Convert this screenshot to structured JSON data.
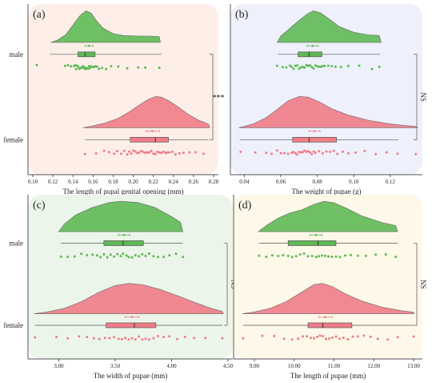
{
  "colors": {
    "male": "#5fb955",
    "female": "#f07c88",
    "axis": "#555555",
    "bracket": "#666666"
  },
  "chart_data": [
    {
      "type": "raincloud",
      "panel_label": "(a)",
      "xlabel": "The length of pupal genital opening (mm)",
      "ylabel": "",
      "xlim": [
        0.1,
        0.28
      ],
      "xticks": [
        0.1,
        0.12,
        0.14,
        0.16,
        0.18,
        0.2,
        0.22,
        0.24,
        0.26,
        0.28
      ],
      "xtick_labels": [
        "0.10",
        "0.12",
        "0.14",
        "0.16",
        "0.18",
        "0.20",
        "0.22",
        "0.24",
        "0.26",
        "0.28"
      ],
      "show_y_labels": true,
      "background": "#fdefe8",
      "significance": "***",
      "groups": [
        {
          "name": "male",
          "density": [
            [
              0.118,
              0
            ],
            [
              0.125,
              0.08
            ],
            [
              0.133,
              0.25
            ],
            [
              0.14,
              0.55
            ],
            [
              0.147,
              0.85
            ],
            [
              0.153,
              1.0
            ],
            [
              0.158,
              0.93
            ],
            [
              0.163,
              0.7
            ],
            [
              0.17,
              0.45
            ],
            [
              0.18,
              0.28
            ],
            [
              0.19,
              0.22
            ],
            [
              0.205,
              0.2
            ],
            [
              0.218,
              0.2
            ],
            [
              0.226,
              0.18
            ],
            [
              0.227,
              0
            ]
          ],
          "box": {
            "q1": 0.145,
            "median": 0.152,
            "q3": 0.162,
            "whisker_low": 0.117,
            "whisker_high": 0.228
          },
          "mean": 0.156,
          "ci": [
            0.152,
            0.16
          ],
          "points": [
            0.104,
            0.132,
            0.135,
            0.138,
            0.141,
            0.142,
            0.143,
            0.144,
            0.145,
            0.146,
            0.147,
            0.148,
            0.149,
            0.15,
            0.15,
            0.151,
            0.152,
            0.153,
            0.154,
            0.155,
            0.156,
            0.157,
            0.158,
            0.16,
            0.161,
            0.162,
            0.164,
            0.166,
            0.169,
            0.173,
            0.178,
            0.185,
            0.194,
            0.205,
            0.212,
            0.226
          ]
        },
        {
          "name": "female",
          "density": [
            [
              0.15,
              0
            ],
            [
              0.16,
              0.06
            ],
            [
              0.172,
              0.15
            ],
            [
              0.185,
              0.3
            ],
            [
              0.197,
              0.52
            ],
            [
              0.207,
              0.74
            ],
            [
              0.215,
              0.9
            ],
            [
              0.222,
              0.99
            ],
            [
              0.228,
              0.97
            ],
            [
              0.236,
              0.84
            ],
            [
              0.245,
              0.65
            ],
            [
              0.255,
              0.42
            ],
            [
              0.265,
              0.24
            ],
            [
              0.275,
              0.12
            ],
            [
              0.276,
              0
            ]
          ],
          "box": {
            "q1": 0.197,
            "median": 0.222,
            "q3": 0.235,
            "whisker_low": 0.152,
            "whisker_high": 0.275
          },
          "mean": 0.219,
          "ci": [
            0.213,
            0.226
          ],
          "points": [
            0.152,
            0.163,
            0.171,
            0.176,
            0.181,
            0.184,
            0.188,
            0.191,
            0.194,
            0.196,
            0.198,
            0.2,
            0.202,
            0.204,
            0.206,
            0.208,
            0.21,
            0.212,
            0.214,
            0.216,
            0.218,
            0.22,
            0.222,
            0.224,
            0.226,
            0.228,
            0.23,
            0.232,
            0.234,
            0.236,
            0.239,
            0.242,
            0.246,
            0.25,
            0.256,
            0.262,
            0.27
          ]
        }
      ]
    },
    {
      "type": "raincloud",
      "panel_label": "(b)",
      "xlabel": "The weight of pupae (g)",
      "ylabel": "",
      "xlim": [
        0.035,
        0.135
      ],
      "xticks": [
        0.04,
        0.06,
        0.08,
        0.1,
        0.12
      ],
      "xtick_labels": [
        "0.04",
        "0.06",
        "0.08",
        "0.10",
        "0.12"
      ],
      "show_y_labels": false,
      "background": "#eef1fb",
      "significance": "NS",
      "groups": [
        {
          "name": "male",
          "density": [
            [
              0.058,
              0
            ],
            [
              0.06,
              0.2
            ],
            [
              0.065,
              0.45
            ],
            [
              0.07,
              0.7
            ],
            [
              0.075,
              0.92
            ],
            [
              0.078,
              1.0
            ],
            [
              0.082,
              0.93
            ],
            [
              0.087,
              0.72
            ],
            [
              0.092,
              0.5
            ],
            [
              0.1,
              0.32
            ],
            [
              0.108,
              0.24
            ],
            [
              0.114,
              0.22
            ],
            [
              0.115,
              0
            ]
          ],
          "box": {
            "q1": 0.0695,
            "median": 0.0755,
            "q3": 0.0825,
            "whisker_low": 0.0585,
            "whisker_high": 0.1145
          },
          "mean": 0.0775,
          "ci": [
            0.0745,
            0.0805
          ],
          "points": [
            0.058,
            0.061,
            0.063,
            0.065,
            0.066,
            0.067,
            0.068,
            0.069,
            0.07,
            0.071,
            0.072,
            0.073,
            0.074,
            0.075,
            0.075,
            0.076,
            0.077,
            0.078,
            0.079,
            0.08,
            0.081,
            0.082,
            0.083,
            0.084,
            0.086,
            0.088,
            0.09,
            0.093,
            0.097,
            0.103,
            0.11,
            0.114
          ]
        },
        {
          "name": "female",
          "density": [
            [
              0.037,
              0
            ],
            [
              0.045,
              0.12
            ],
            [
              0.052,
              0.32
            ],
            [
              0.058,
              0.58
            ],
            [
              0.064,
              0.85
            ],
            [
              0.07,
              0.99
            ],
            [
              0.075,
              0.97
            ],
            [
              0.081,
              0.82
            ],
            [
              0.088,
              0.6
            ],
            [
              0.097,
              0.4
            ],
            [
              0.108,
              0.24
            ],
            [
              0.12,
              0.12
            ],
            [
              0.134,
              0.04
            ],
            [
              0.135,
              0
            ]
          ],
          "box": {
            "q1": 0.0665,
            "median": 0.0755,
            "q3": 0.0905,
            "whisker_low": 0.0375,
            "whisker_high": 0.1245
          },
          "mean": 0.0785,
          "ci": [
            0.0755,
            0.0815
          ],
          "points": [
            0.038,
            0.046,
            0.052,
            0.055,
            0.058,
            0.06,
            0.062,
            0.064,
            0.066,
            0.067,
            0.068,
            0.069,
            0.07,
            0.071,
            0.072,
            0.073,
            0.074,
            0.075,
            0.076,
            0.077,
            0.078,
            0.079,
            0.081,
            0.083,
            0.085,
            0.087,
            0.089,
            0.091,
            0.094,
            0.097,
            0.101,
            0.106,
            0.112,
            0.118,
            0.124,
            0.134
          ]
        }
      ]
    },
    {
      "type": "raincloud",
      "panel_label": "(c)",
      "xlabel": "The width of pupae (mm)",
      "ylabel": "",
      "xlim": [
        2.77,
        4.5
      ],
      "xticks": [
        3.0,
        3.5,
        4.0,
        4.5
      ],
      "xtick_labels": [
        "3.00",
        "3.50",
        "4.00",
        "4.50"
      ],
      "show_y_labels": true,
      "background": "#ecf5ea",
      "significance": "NS",
      "groups": [
        {
          "name": "male",
          "density": [
            [
              3.0,
              0
            ],
            [
              3.05,
              0.25
            ],
            [
              3.15,
              0.55
            ],
            [
              3.3,
              0.8
            ],
            [
              3.45,
              0.96
            ],
            [
              3.55,
              1.0
            ],
            [
              3.7,
              0.96
            ],
            [
              3.85,
              0.8
            ],
            [
              4.0,
              0.5
            ],
            [
              4.08,
              0.3
            ],
            [
              4.1,
              0
            ]
          ],
          "box": {
            "q1": 3.4,
            "median": 3.57,
            "q3": 3.75,
            "whisker_low": 3.02,
            "whisker_high": 4.1
          },
          "mean": 3.58,
          "ci": [
            3.53,
            3.63
          ],
          "points": [
            3.02,
            3.08,
            3.14,
            3.2,
            3.25,
            3.3,
            3.34,
            3.37,
            3.4,
            3.43,
            3.46,
            3.49,
            3.52,
            3.55,
            3.57,
            3.6,
            3.62,
            3.65,
            3.68,
            3.71,
            3.74,
            3.77,
            3.8,
            3.84,
            3.88,
            3.93,
            3.98,
            4.04,
            4.1
          ]
        },
        {
          "name": "female",
          "density": [
            [
              2.78,
              0
            ],
            [
              2.9,
              0.06
            ],
            [
              3.05,
              0.18
            ],
            [
              3.2,
              0.4
            ],
            [
              3.35,
              0.7
            ],
            [
              3.5,
              0.93
            ],
            [
              3.62,
              1.0
            ],
            [
              3.75,
              0.95
            ],
            [
              3.9,
              0.8
            ],
            [
              4.05,
              0.6
            ],
            [
              4.2,
              0.38
            ],
            [
              4.35,
              0.18
            ],
            [
              4.45,
              0.08
            ],
            [
              4.46,
              0
            ]
          ],
          "box": {
            "q1": 3.42,
            "median": 3.67,
            "q3": 3.86,
            "whisker_low": 2.79,
            "whisker_high": 4.45
          },
          "mean": 3.65,
          "ci": [
            3.59,
            3.71
          ],
          "points": [
            2.79,
            2.98,
            3.08,
            3.18,
            3.25,
            3.31,
            3.36,
            3.41,
            3.45,
            3.49,
            3.53,
            3.56,
            3.59,
            3.62,
            3.65,
            3.68,
            3.71,
            3.74,
            3.77,
            3.8,
            3.84,
            3.88,
            3.93,
            3.98,
            4.05,
            4.12,
            4.2,
            4.3,
            4.45
          ]
        }
      ]
    },
    {
      "type": "raincloud",
      "panel_label": "(d)",
      "xlabel": "The length of pupae (mm)",
      "ylabel": "",
      "xlim": [
        8.6,
        13.1
      ],
      "xticks": [
        9.0,
        10.0,
        11.0,
        12.0,
        13.0
      ],
      "xtick_labels": [
        "9.00",
        "10.00",
        "11.00",
        "12.00",
        "13.00"
      ],
      "show_y_labels": false,
      "background": "#fdf8e8",
      "significance": "NS",
      "groups": [
        {
          "name": "male",
          "density": [
            [
              9.1,
              0
            ],
            [
              9.3,
              0.2
            ],
            [
              9.6,
              0.45
            ],
            [
              9.9,
              0.62
            ],
            [
              10.2,
              0.72
            ],
            [
              10.5,
              0.9
            ],
            [
              10.75,
              1.0
            ],
            [
              11.0,
              0.95
            ],
            [
              11.3,
              0.78
            ],
            [
              11.7,
              0.52
            ],
            [
              12.2,
              0.3
            ],
            [
              12.55,
              0.2
            ],
            [
              12.6,
              0
            ]
          ],
          "box": {
            "q1": 9.85,
            "median": 10.6,
            "q3": 11.05,
            "whisker_low": 9.12,
            "whisker_high": 12.6
          },
          "mean": 10.55,
          "ci": [
            10.4,
            10.7
          ],
          "points": [
            9.12,
            9.3,
            9.45,
            9.6,
            9.72,
            9.85,
            9.95,
            10.05,
            10.15,
            10.25,
            10.35,
            10.45,
            10.55,
            10.62,
            10.7,
            10.78,
            10.86,
            10.95,
            11.05,
            11.15,
            11.28,
            11.42,
            11.6,
            11.8,
            12.05,
            12.3,
            12.55
          ]
        },
        {
          "name": "female",
          "density": [
            [
              8.7,
              0
            ],
            [
              9.0,
              0.06
            ],
            [
              9.4,
              0.18
            ],
            [
              9.8,
              0.4
            ],
            [
              10.2,
              0.72
            ],
            [
              10.5,
              0.96
            ],
            [
              10.7,
              1.0
            ],
            [
              10.95,
              0.9
            ],
            [
              11.3,
              0.65
            ],
            [
              11.7,
              0.42
            ],
            [
              12.2,
              0.22
            ],
            [
              12.7,
              0.1
            ],
            [
              13.0,
              0.05
            ],
            [
              13.01,
              0
            ]
          ],
          "box": {
            "q1": 10.35,
            "median": 10.72,
            "q3": 11.45,
            "whisker_low": 8.72,
            "whisker_high": 13.0
          },
          "mean": 10.78,
          "ci": [
            10.62,
            10.95
          ],
          "points": [
            8.72,
            9.2,
            9.5,
            9.75,
            9.95,
            10.1,
            10.22,
            10.32,
            10.42,
            10.5,
            10.58,
            10.65,
            10.72,
            10.8,
            10.88,
            10.96,
            11.05,
            11.14,
            11.24,
            11.35,
            11.47,
            11.6,
            11.75,
            11.92,
            12.1,
            12.35,
            12.6,
            13.0
          ]
        }
      ]
    }
  ]
}
